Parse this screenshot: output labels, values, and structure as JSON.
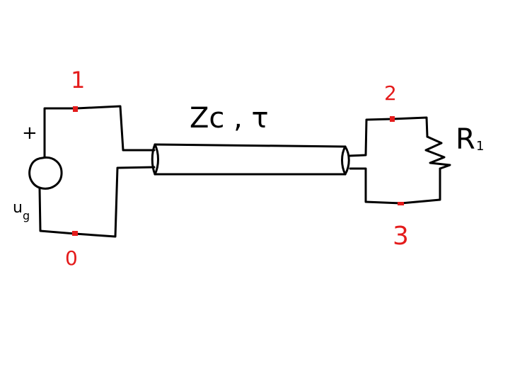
{
  "colors": {
    "wire": "#000000",
    "node": "#e41b1b",
    "background": "#ffffff"
  },
  "source": {
    "plus_sign": "+",
    "label": "u",
    "label_sub": "g"
  },
  "line": {
    "label": "Zc , τ"
  },
  "load": {
    "label": "R",
    "label_sub": "1"
  },
  "nodes": {
    "n0": "0",
    "n1": "1",
    "n2": "2",
    "n3": "3"
  }
}
